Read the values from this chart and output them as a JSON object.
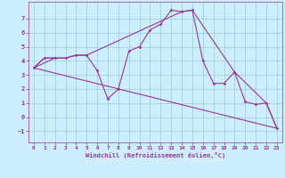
{
  "xlabel": "Windchill (Refroidissement éolien,°C)",
  "bg_color": "#cceeff",
  "line_color": "#993399",
  "grid_color": "#99cccc",
  "xlim": [
    -0.5,
    23.5
  ],
  "ylim": [
    -1.8,
    8.2
  ],
  "yticks": [
    -1,
    0,
    1,
    2,
    3,
    4,
    5,
    6,
    7
  ],
  "xticks": [
    0,
    1,
    2,
    3,
    4,
    5,
    6,
    7,
    8,
    9,
    10,
    11,
    12,
    13,
    14,
    15,
    16,
    17,
    18,
    19,
    20,
    21,
    22,
    23
  ],
  "lines": [
    {
      "x": [
        0,
        1,
        2,
        3,
        4,
        5,
        6,
        7,
        8,
        9,
        10,
        11,
        12,
        13,
        14,
        15,
        16,
        17,
        18,
        19,
        20,
        21,
        22,
        23
      ],
      "y": [
        3.5,
        4.2,
        4.2,
        4.2,
        4.4,
        4.4,
        3.3,
        1.3,
        2.0,
        4.7,
        5.0,
        6.2,
        6.6,
        7.6,
        7.5,
        7.6,
        4.0,
        2.4,
        2.4,
        3.2,
        1.1,
        0.9,
        1.0,
        -0.8
      ],
      "marker": true
    },
    {
      "x": [
        0,
        2
      ],
      "y": [
        3.5,
        4.2
      ],
      "marker": false
    },
    {
      "x": [
        0,
        1,
        2,
        3,
        4,
        5,
        14,
        15,
        19,
        22,
        23
      ],
      "y": [
        3.5,
        4.2,
        4.2,
        4.2,
        4.4,
        4.4,
        7.5,
        7.6,
        3.2,
        1.0,
        -0.8
      ],
      "marker": false
    },
    {
      "x": [
        0,
        23
      ],
      "y": [
        3.5,
        -0.8
      ],
      "marker": false
    }
  ]
}
